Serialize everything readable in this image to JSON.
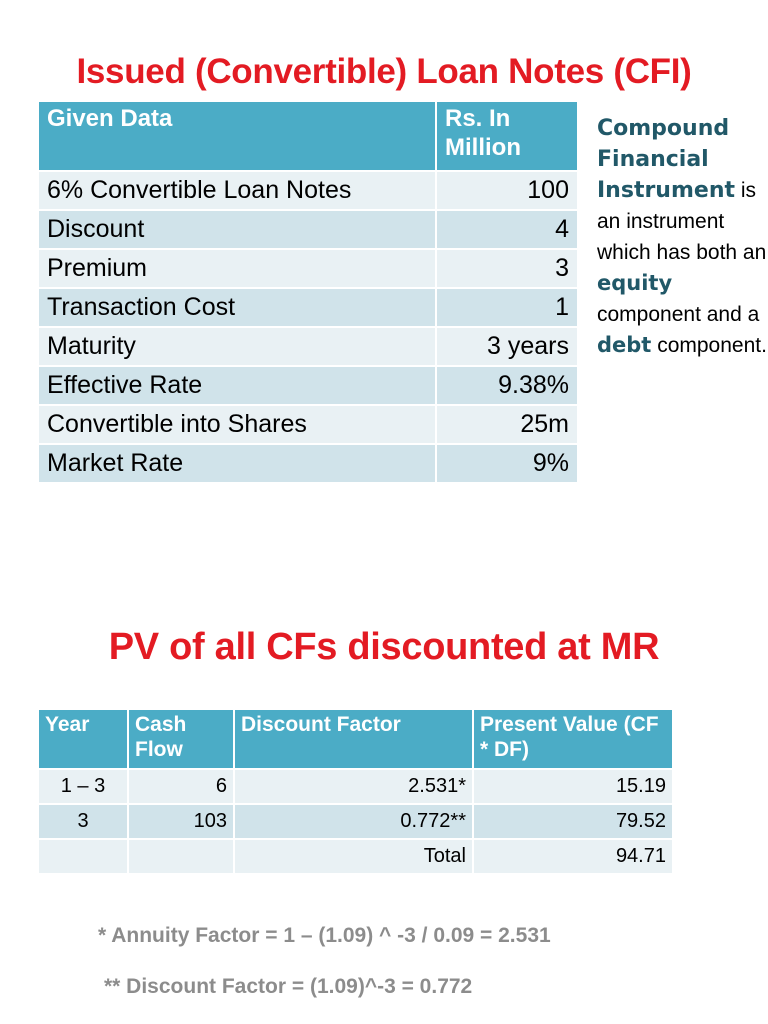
{
  "title1": "Issued (Convertible) Loan Notes (CFI)",
  "given": {
    "headers": [
      "Given Data",
      "Rs. In Million"
    ],
    "rows": [
      {
        "label": "6% Convertible Loan Notes",
        "value": "100"
      },
      {
        "label": "Discount",
        "value": "4"
      },
      {
        "label": "Premium",
        "value": "3"
      },
      {
        "label": "Transaction Cost",
        "value": "1"
      },
      {
        "label": "Maturity",
        "value": "3 years"
      },
      {
        "label": "Effective Rate",
        "value": "9.38%"
      },
      {
        "label": "Convertible into Shares",
        "value": "25m"
      },
      {
        "label": "Market Rate",
        "value": "9%"
      }
    ]
  },
  "side_note": {
    "term": "Compound Financial Instrument",
    "text1": "is an instrument which has both an",
    "kw1": "equity",
    "text2": "component and a",
    "kw2": "debt",
    "text3": "component."
  },
  "title2": "PV of all CFs discounted at MR",
  "pv": {
    "headers": [
      "Year",
      "Cash Flow",
      "Discount Factor",
      "Present Value (CF * DF)"
    ],
    "rows": [
      {
        "year": "1 – 3",
        "cf": "6",
        "df": "2.531*",
        "pv": "15.19"
      },
      {
        "year": "3",
        "cf": "103",
        "df": "0.772**",
        "pv": "79.52"
      },
      {
        "year": "",
        "cf": "",
        "df": "Total",
        "pv": "94.71"
      }
    ]
  },
  "notes": {
    "note1": "* Annuity Factor = 1 – (1.09) ^ -3 / 0.09 = 2.531",
    "note2": "** Discount Factor  = (1.09)^-3 = 0.772"
  },
  "colors": {
    "title": "#e31b23",
    "header_bg": "#4bacc6",
    "row_dark": "#d0e3ea",
    "row_light": "#e9f1f4",
    "term": "#215868",
    "note": "#8c8c8c"
  }
}
